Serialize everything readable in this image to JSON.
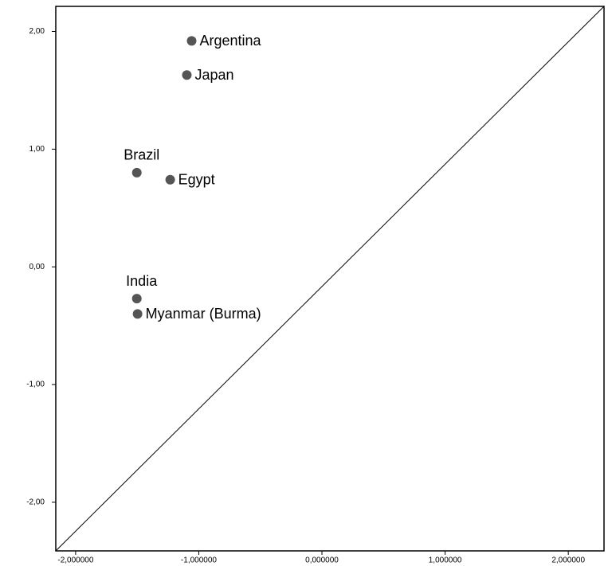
{
  "chart_data": {
    "type": "scatter",
    "points": [
      "Argentina",
      "Japan",
      "Brazil",
      "Egypt",
      "India",
      "Myanmar (Burma)"
    ],
    "x": [
      -1.058,
      -1.097,
      -1.503,
      -1.232,
      -1.503,
      -1.497
    ],
    "values": [
      1.92,
      1.63,
      0.8,
      0.74,
      -0.27,
      -0.4
    ],
    "label_positions": [
      "right",
      "right",
      "above",
      "right",
      "above",
      "right"
    ],
    "color": "#555555",
    "diagonal_line": true,
    "xlim": [
      -2.161,
      2.29
    ],
    "ylim": [
      -2.413,
      2.213
    ],
    "xticks": [
      {
        "value": -2,
        "label": "-2,000000"
      },
      {
        "value": -1,
        "label": "-1,000000"
      },
      {
        "value": 0,
        "label": "0,000000"
      },
      {
        "value": 1,
        "label": "1,000000"
      },
      {
        "value": 2,
        "label": "2,000000"
      }
    ],
    "yticks": [
      {
        "value": 2,
        "label": "2,00"
      },
      {
        "value": 1,
        "label": "1,00"
      },
      {
        "value": 0,
        "label": "0,00"
      },
      {
        "value": -1,
        "label": "-1,00"
      },
      {
        "value": -2,
        "label": "-2,00"
      }
    ]
  }
}
